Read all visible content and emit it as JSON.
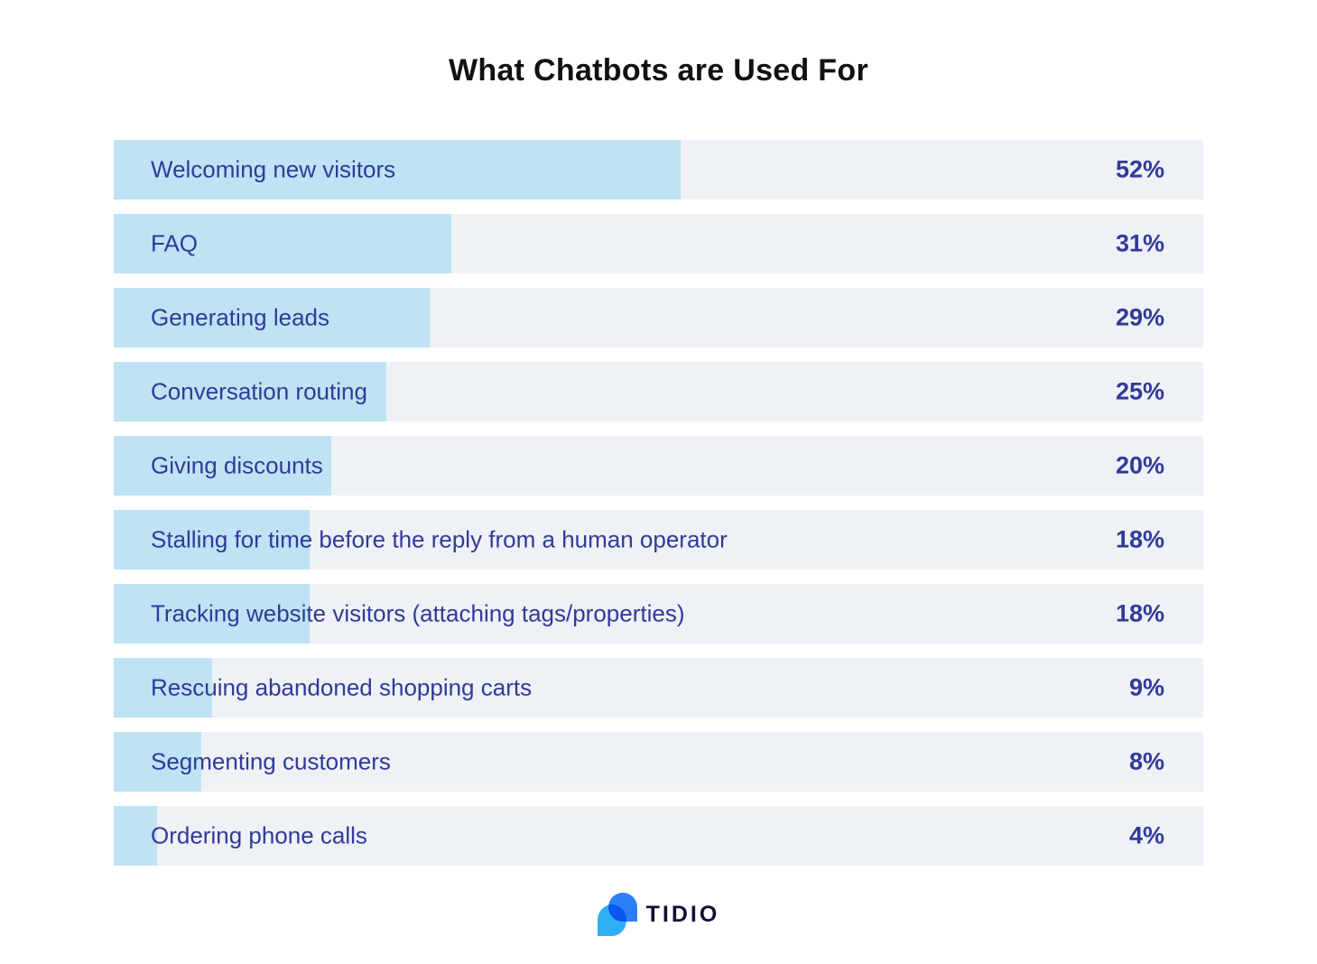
{
  "title": "What Chatbots are Used For",
  "chart_data": {
    "type": "bar",
    "orientation": "horizontal",
    "title": "What Chatbots are Used For",
    "unit": "%",
    "xlim": [
      0,
      100
    ],
    "grid": false,
    "legend": false,
    "categories": [
      "Welcoming new visitors",
      "FAQ",
      "Generating leads",
      "Conversation routing",
      "Giving discounts",
      "Stalling for time before the reply from a human operator",
      "Tracking website visitors (attaching tags/properties)",
      "Rescuing abandoned shopping carts",
      "Segmenting customers",
      "Ordering phone calls"
    ],
    "values": [
      52,
      31,
      29,
      25,
      20,
      18,
      18,
      9,
      8,
      4
    ],
    "rows": [
      {
        "label": "Welcoming new visitors",
        "value": 52,
        "pct_label": "52%"
      },
      {
        "label": "FAQ",
        "value": 31,
        "pct_label": "31%"
      },
      {
        "label": "Generating leads",
        "value": 29,
        "pct_label": "29%"
      },
      {
        "label": "Conversation routing",
        "value": 25,
        "pct_label": "25%"
      },
      {
        "label": "Giving discounts",
        "value": 20,
        "pct_label": "20%"
      },
      {
        "label": "Stalling for time before the reply from a human operator",
        "value": 18,
        "pct_label": "18%"
      },
      {
        "label": "Tracking website visitors (attaching tags/properties)",
        "value": 18,
        "pct_label": "18%"
      },
      {
        "label": "Rescuing abandoned shopping carts",
        "value": 9,
        "pct_label": "9%"
      },
      {
        "label": "Segmenting customers",
        "value": 8,
        "pct_label": "8%"
      },
      {
        "label": "Ordering phone calls",
        "value": 4,
        "pct_label": "4%"
      }
    ]
  },
  "logo": {
    "brand": "TIDIO",
    "mark_icon": "tidio-chat-bubbles-icon"
  },
  "colors": {
    "fill": "#BFE3F4",
    "track": "#EEF1F6",
    "ink": "#313A99",
    "title-ink": "#111111",
    "logo-dark": "#2D7FF7",
    "logo-light": "#2FAFF5",
    "brand-ink": "#0E1033"
  }
}
